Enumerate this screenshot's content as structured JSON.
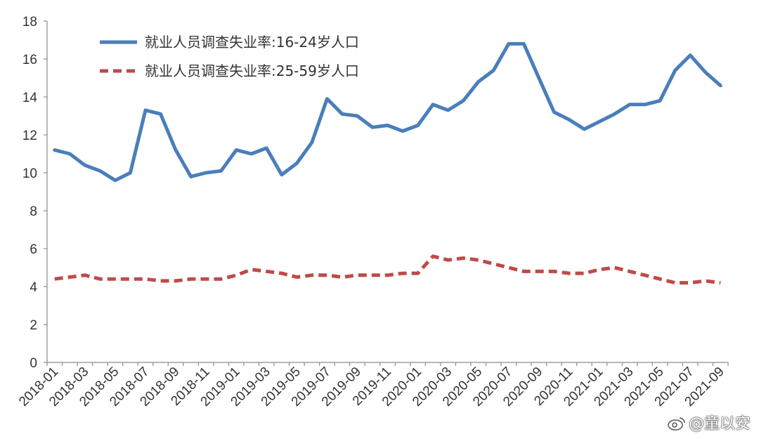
{
  "chart_data": {
    "type": "line",
    "title": "",
    "xlabel": "",
    "ylabel": "",
    "ylim": [
      0,
      18
    ],
    "yticks": [
      "0",
      "2",
      "4",
      "6",
      "8",
      "10",
      "12",
      "14",
      "16",
      "18"
    ],
    "xtick_labels": [
      "2018-01",
      "2018-03",
      "2018-05",
      "2018-07",
      "2018-09",
      "2018-11",
      "2019-01",
      "2019-03",
      "2019-05",
      "2019-07",
      "2019-09",
      "2019-11",
      "2020-01",
      "2020-03",
      "2020-05",
      "2020-07",
      "2020-09",
      "2020-11",
      "2021-01",
      "2021-03",
      "2021-05",
      "2021-07",
      "2021-09"
    ],
    "x": [
      "2018-01",
      "2018-02",
      "2018-03",
      "2018-04",
      "2018-05",
      "2018-06",
      "2018-07",
      "2018-08",
      "2018-09",
      "2018-10",
      "2018-11",
      "2018-12",
      "2019-01",
      "2019-02",
      "2019-03",
      "2019-04",
      "2019-05",
      "2019-06",
      "2019-07",
      "2019-08",
      "2019-09",
      "2019-10",
      "2019-11",
      "2019-12",
      "2020-01",
      "2020-02",
      "2020-03",
      "2020-04",
      "2020-05",
      "2020-06",
      "2020-07",
      "2020-08",
      "2020-09",
      "2020-10",
      "2020-11",
      "2020-12",
      "2021-01",
      "2021-02",
      "2021-03",
      "2021-04",
      "2021-05",
      "2021-06",
      "2021-07",
      "2021-08",
      "2021-09"
    ],
    "series": [
      {
        "name": "就业人员调查失业率:16-24岁人口",
        "color": "#4a7ebb",
        "style": "solid",
        "values": [
          11.2,
          11.0,
          10.4,
          10.1,
          9.6,
          10.0,
          13.3,
          13.1,
          11.2,
          9.8,
          10.0,
          10.1,
          11.2,
          11.0,
          11.3,
          9.9,
          10.5,
          11.6,
          13.9,
          13.1,
          13.0,
          12.4,
          12.5,
          12.2,
          12.5,
          13.6,
          13.3,
          13.8,
          14.8,
          15.4,
          16.8,
          16.8,
          15.0,
          13.2,
          12.8,
          12.3,
          12.7,
          13.1,
          13.6,
          13.6,
          13.8,
          15.4,
          16.2,
          15.3,
          14.6
        ]
      },
      {
        "name": "就业人员调查失业率:25-59岁人口",
        "color": "#be4b48",
        "style": "dashed",
        "values": [
          4.4,
          4.5,
          4.6,
          4.4,
          4.4,
          4.4,
          4.4,
          4.3,
          4.3,
          4.4,
          4.4,
          4.4,
          4.6,
          4.9,
          4.8,
          4.7,
          4.5,
          4.6,
          4.6,
          4.5,
          4.6,
          4.6,
          4.6,
          4.7,
          4.7,
          5.6,
          5.4,
          5.5,
          5.4,
          5.2,
          5.0,
          4.8,
          4.8,
          4.8,
          4.7,
          4.7,
          4.9,
          5.0,
          4.8,
          4.6,
          4.4,
          4.2,
          4.2,
          4.3,
          4.2
        ]
      }
    ],
    "legend_position": "top-left",
    "grid": false
  },
  "watermark": {
    "icon": "weibo-icon",
    "text": "@童以安"
  }
}
